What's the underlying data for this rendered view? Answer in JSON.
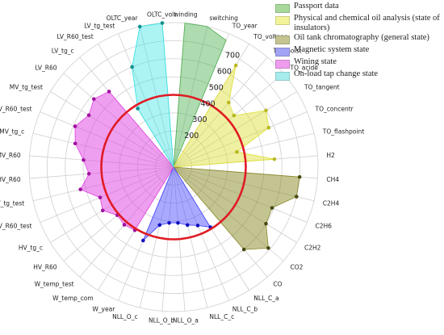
{
  "chart_data": {
    "type": "radar",
    "title": "",
    "radial_ticks": [
      200,
      300,
      400,
      500,
      600,
      700
    ],
    "radial_range": [
      0,
      800
    ],
    "threshold": {
      "value": 400,
      "color": "#e01b24"
    },
    "grid": true,
    "legend_position": "top-right",
    "axes": [
      "winding",
      "switching",
      "TO_year",
      "TO_voltage",
      "TO_moist",
      "TO_acide",
      "TO_tangent",
      "TO_concentr",
      "TO_flashpoint",
      "H2",
      "CH4",
      "C2H4",
      "C2H6",
      "C2H2",
      "CO2",
      "CO",
      "NLL_C_a",
      "NLL_C_b",
      "NLL_C_c",
      "NLL_O_a",
      "NLL_O_b",
      "NLL_O_c",
      "W_year",
      "W_temp_com",
      "W_temp_test",
      "HV_R60",
      "HV_tg_c",
      "HV_R60_test",
      "HV_tg_test",
      "HV_R60",
      "MV_R60",
      "MV_tg_c",
      "MV_R60_test",
      "MV_tg_test",
      "LV_R60",
      "LV_tg_c",
      "LV_R60_test",
      "LV_tg_test",
      "OLTC_year",
      "OLTC_volt"
    ],
    "series": [
      {
        "name": "Passport data",
        "color": "#4caf50",
        "fill_opacity": 0.45,
        "markers": false,
        "values": [
          {
            "axis": 0,
            "value": 800
          },
          {
            "axis": 1,
            "value": 800
          },
          {
            "axis": 2,
            "value": 760
          }
        ]
      },
      {
        "name": "Physical and chemical oil analysis (state of insulators)",
        "color": "#dede30",
        "fill_opacity": 0.45,
        "markers": true,
        "values": [
          {
            "axis": 3,
            "value": 660
          },
          {
            "axis": 4,
            "value": 470
          },
          {
            "axis": 5,
            "value": 440
          },
          {
            "axis": 6,
            "value": 600
          },
          {
            "axis": 7,
            "value": 570
          },
          {
            "axis": 8,
            "value": 360
          },
          {
            "axis": 9,
            "value": 560
          }
        ]
      },
      {
        "name": "Oil tank chromatography (general state)",
        "color": "#8a8a28",
        "fill_opacity": 0.5,
        "markers": true,
        "values": [
          {
            "axis": 10,
            "value": 700
          },
          {
            "axis": 11,
            "value": 700
          },
          {
            "axis": 12,
            "value": 590
          },
          {
            "axis": 13,
            "value": 600
          },
          {
            "axis": 14,
            "value": 690
          },
          {
            "axis": 15,
            "value": 600
          }
        ]
      },
      {
        "name": "Magnetic system state",
        "color": "#4040ff",
        "fill_opacity": 0.45,
        "markers": true,
        "values": [
          {
            "axis": 16,
            "value": 390
          },
          {
            "axis": 17,
            "value": 350
          },
          {
            "axis": 18,
            "value": 330
          },
          {
            "axis": 19,
            "value": 310
          },
          {
            "axis": 20,
            "value": 310
          },
          {
            "axis": 21,
            "value": 330
          },
          {
            "axis": 22,
            "value": 440
          }
        ]
      },
      {
        "name": "Wining state",
        "color": "#e040e0",
        "fill_opacity": 0.5,
        "markers": true,
        "values": [
          {
            "axis": 23,
            "value": 410
          },
          {
            "axis": 24,
            "value": 420
          },
          {
            "axis": 25,
            "value": 410
          },
          {
            "axis": 26,
            "value": 460
          },
          {
            "axis": 27,
            "value": 440
          },
          {
            "axis": 28,
            "value": 530
          },
          {
            "axis": 29,
            "value": 470
          },
          {
            "axis": 30,
            "value": 500
          },
          {
            "axis": 31,
            "value": 560
          },
          {
            "axis": 32,
            "value": 590
          },
          {
            "axis": 33,
            "value": 550
          },
          {
            "axis": 34,
            "value": 580
          },
          {
            "axis": 35,
            "value": 550
          }
        ]
      },
      {
        "name": "On-load tap change state",
        "color": "#30e0e0",
        "fill_opacity": 0.4,
        "markers": true,
        "values": [
          {
            "axis": 36,
            "value": 380
          },
          {
            "axis": 37,
            "value": 600
          },
          {
            "axis": 38,
            "value": 800
          },
          {
            "axis": 39,
            "value": 800
          }
        ]
      }
    ]
  },
  "legend": [
    {
      "label": "Passport data",
      "color": "#a8d99a"
    },
    {
      "label": "Physical and chemical oil analysis (state of insulators)",
      "color": "#f3f39a"
    },
    {
      "label": "Oil tank chromatography (general state)",
      "color": "#c4c491"
    },
    {
      "label": "Magnetic system state",
      "color": "#a3a3f5"
    },
    {
      "label": "Wining state",
      "color": "#ee9cee"
    },
    {
      "label": "On-load tap change state",
      "color": "#a7ecec"
    }
  ]
}
